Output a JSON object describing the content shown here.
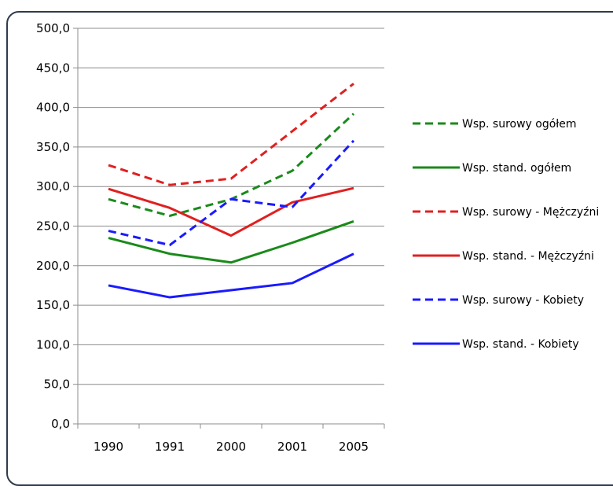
{
  "chart_data": {
    "type": "line",
    "title": "",
    "xlabel": "",
    "ylabel": "",
    "categories": [
      "1990",
      "1991",
      "2000",
      "2001",
      "2005"
    ],
    "ylim": [
      0,
      500
    ],
    "yticks": [
      "0,0",
      "50,0",
      "100,0",
      "150,0",
      "200,0",
      "250,0",
      "300,0",
      "350,0",
      "400,0",
      "450,0",
      "500,0"
    ],
    "grid": true,
    "legend_position": "right",
    "series": [
      {
        "name": "Wsp. surowy ogółem",
        "color": "#1a8a1a",
        "dash": true,
        "values": [
          284,
          263,
          284,
          320,
          392
        ]
      },
      {
        "name": "Wsp. stand. ogółem",
        "color": "#1a8a1a",
        "dash": false,
        "values": [
          235,
          215,
          204,
          229,
          256
        ]
      },
      {
        "name": "Wsp. surowy - Mężczyźni",
        "color": "#e02020",
        "dash": true,
        "values": [
          327,
          302,
          310,
          370,
          430
        ]
      },
      {
        "name": "Wsp. stand. - Mężczyźni",
        "color": "#e02020",
        "dash": false,
        "values": [
          297,
          273,
          238,
          280,
          298
        ]
      },
      {
        "name": "Wsp. surowy - Kobiety",
        "color": "#1a1aff",
        "dash": true,
        "values": [
          244,
          226,
          284,
          274,
          358
        ]
      },
      {
        "name": "Wsp. stand. - Kobiety",
        "color": "#1a1aff",
        "dash": false,
        "values": [
          175,
          160,
          169,
          178,
          215
        ]
      }
    ]
  }
}
